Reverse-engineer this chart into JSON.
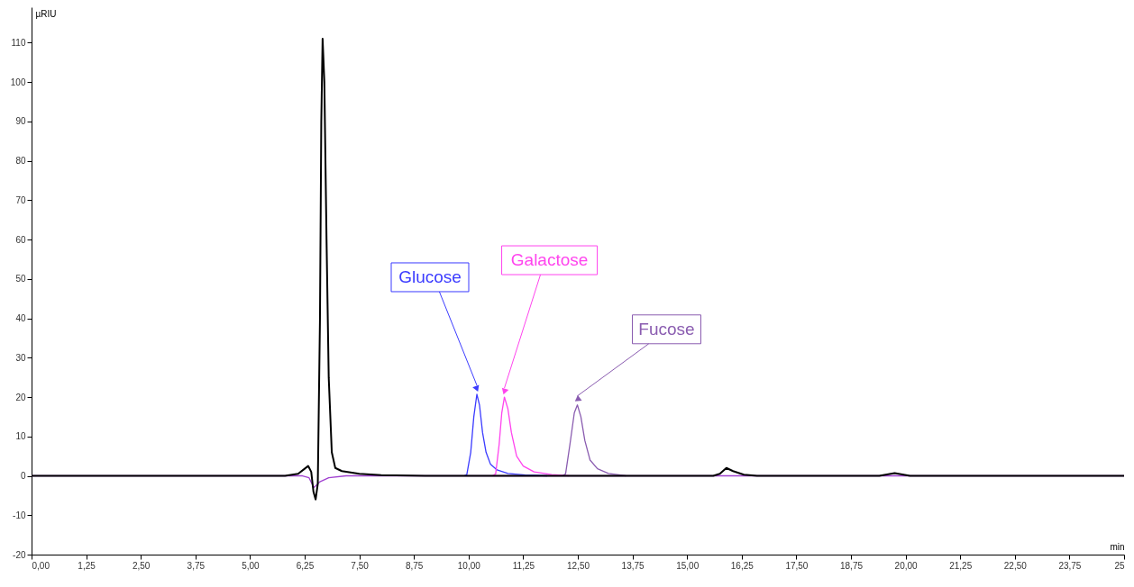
{
  "chart_data": {
    "type": "line",
    "xlabel": "min",
    "ylabel": "µRIU",
    "xlim": [
      0,
      25
    ],
    "ylim": [
      -20,
      119
    ],
    "xticks": [
      {
        "value": 0,
        "label": "0,00"
      },
      {
        "value": 1.25,
        "label": "1,25"
      },
      {
        "value": 2.5,
        "label": "2,50"
      },
      {
        "value": 3.75,
        "label": "3,75"
      },
      {
        "value": 5,
        "label": "5,00"
      },
      {
        "value": 6.25,
        "label": "6,25"
      },
      {
        "value": 7.5,
        "label": "7,50"
      },
      {
        "value": 8.75,
        "label": "8,75"
      },
      {
        "value": 10,
        "label": "10,00"
      },
      {
        "value": 11.25,
        "label": "11,25"
      },
      {
        "value": 12.5,
        "label": "12,50"
      },
      {
        "value": 13.75,
        "label": "13,75"
      },
      {
        "value": 15,
        "label": "15,00"
      },
      {
        "value": 16.25,
        "label": "16,25"
      },
      {
        "value": 17.5,
        "label": "17,50"
      },
      {
        "value": 18.75,
        "label": "18,75"
      },
      {
        "value": 20,
        "label": "20,00"
      },
      {
        "value": 21.25,
        "label": "21,25"
      },
      {
        "value": 22.5,
        "label": "22,50"
      },
      {
        "value": 23.75,
        "label": "23,75"
      },
      {
        "value": 25,
        "label": "25"
      }
    ],
    "yticks": [
      -20,
      -10,
      0,
      10,
      20,
      30,
      40,
      50,
      60,
      70,
      80,
      90,
      100,
      110
    ],
    "grid": false,
    "series": [
      {
        "color": "#a040d0",
        "x": [
          0,
          6.2,
          6.35,
          6.46,
          6.6,
          6.8,
          7.2,
          25
        ],
        "values": [
          0,
          0,
          -0.5,
          -3,
          -1.5,
          -0.5,
          0,
          0
        ]
      },
      {
        "name": "Glucose",
        "color": "#3b3bff",
        "x": [
          9.9,
          9.96,
          10.05,
          10.12,
          10.19,
          10.25,
          10.32,
          10.4,
          10.5,
          10.65,
          10.9,
          11.3,
          11.8
        ],
        "values": [
          0,
          0.3,
          6,
          15,
          20.7,
          18,
          11,
          6,
          3,
          1.5,
          0.6,
          0.2,
          0
        ]
      },
      {
        "name": "Galactose",
        "color": "#ff44ee",
        "x": [
          10.55,
          10.62,
          10.7,
          10.76,
          10.82,
          10.9,
          10.98,
          11.1,
          11.25,
          11.5,
          11.9,
          12.3
        ],
        "values": [
          0,
          0.5,
          8,
          16,
          20,
          17,
          11,
          5,
          2.5,
          1,
          0.3,
          0
        ]
      },
      {
        "name": "Fucose",
        "color": "#8a5cb0",
        "x": [
          12.15,
          12.22,
          12.32,
          12.42,
          12.49,
          12.57,
          12.66,
          12.78,
          12.95,
          13.2,
          13.6
        ],
        "values": [
          0,
          0.5,
          8,
          16,
          18,
          15,
          9,
          4,
          1.8,
          0.6,
          0
        ]
      },
      {
        "color": "#000000",
        "x": [
          0,
          5.8,
          6.1,
          6.25,
          6.33,
          6.4,
          6.45,
          6.5,
          6.55,
          6.6,
          6.63,
          6.66,
          6.7,
          6.75,
          6.8,
          6.87,
          6.95,
          7.1,
          7.5,
          8,
          9,
          15.6,
          15.75,
          15.9,
          16.05,
          16.3,
          16.6,
          19.4,
          19.75,
          20.1,
          25
        ],
        "values": [
          0,
          0,
          0.5,
          1.8,
          2.5,
          1,
          -4,
          -6,
          -2,
          40,
          90,
          111,
          100,
          60,
          25,
          6,
          2,
          1.2,
          0.5,
          0.2,
          0,
          0,
          0.5,
          2,
          1.2,
          0.3,
          0,
          0,
          0.7,
          0,
          0
        ]
      }
    ]
  }
}
